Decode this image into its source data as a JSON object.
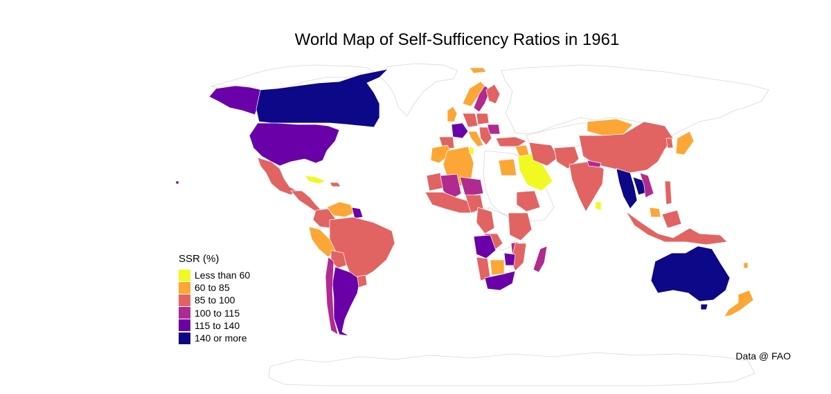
{
  "title": "World Map of Self-Sufficency Ratios in 1961",
  "legend": {
    "title": "SSR (%)",
    "items": [
      {
        "label": "Less than 60",
        "color": "#f0f921"
      },
      {
        "label": "60 to 85",
        "color": "#fca636"
      },
      {
        "label": "85 to 100",
        "color": "#e16462"
      },
      {
        "label": "100 to 115",
        "color": "#b12a90"
      },
      {
        "label": "115 to 140",
        "color": "#6a00a8"
      },
      {
        "label": "140 or more",
        "color": "#0d0887"
      }
    ]
  },
  "caption": "Data @ FAO",
  "no_data_color": "#ffffff"
}
